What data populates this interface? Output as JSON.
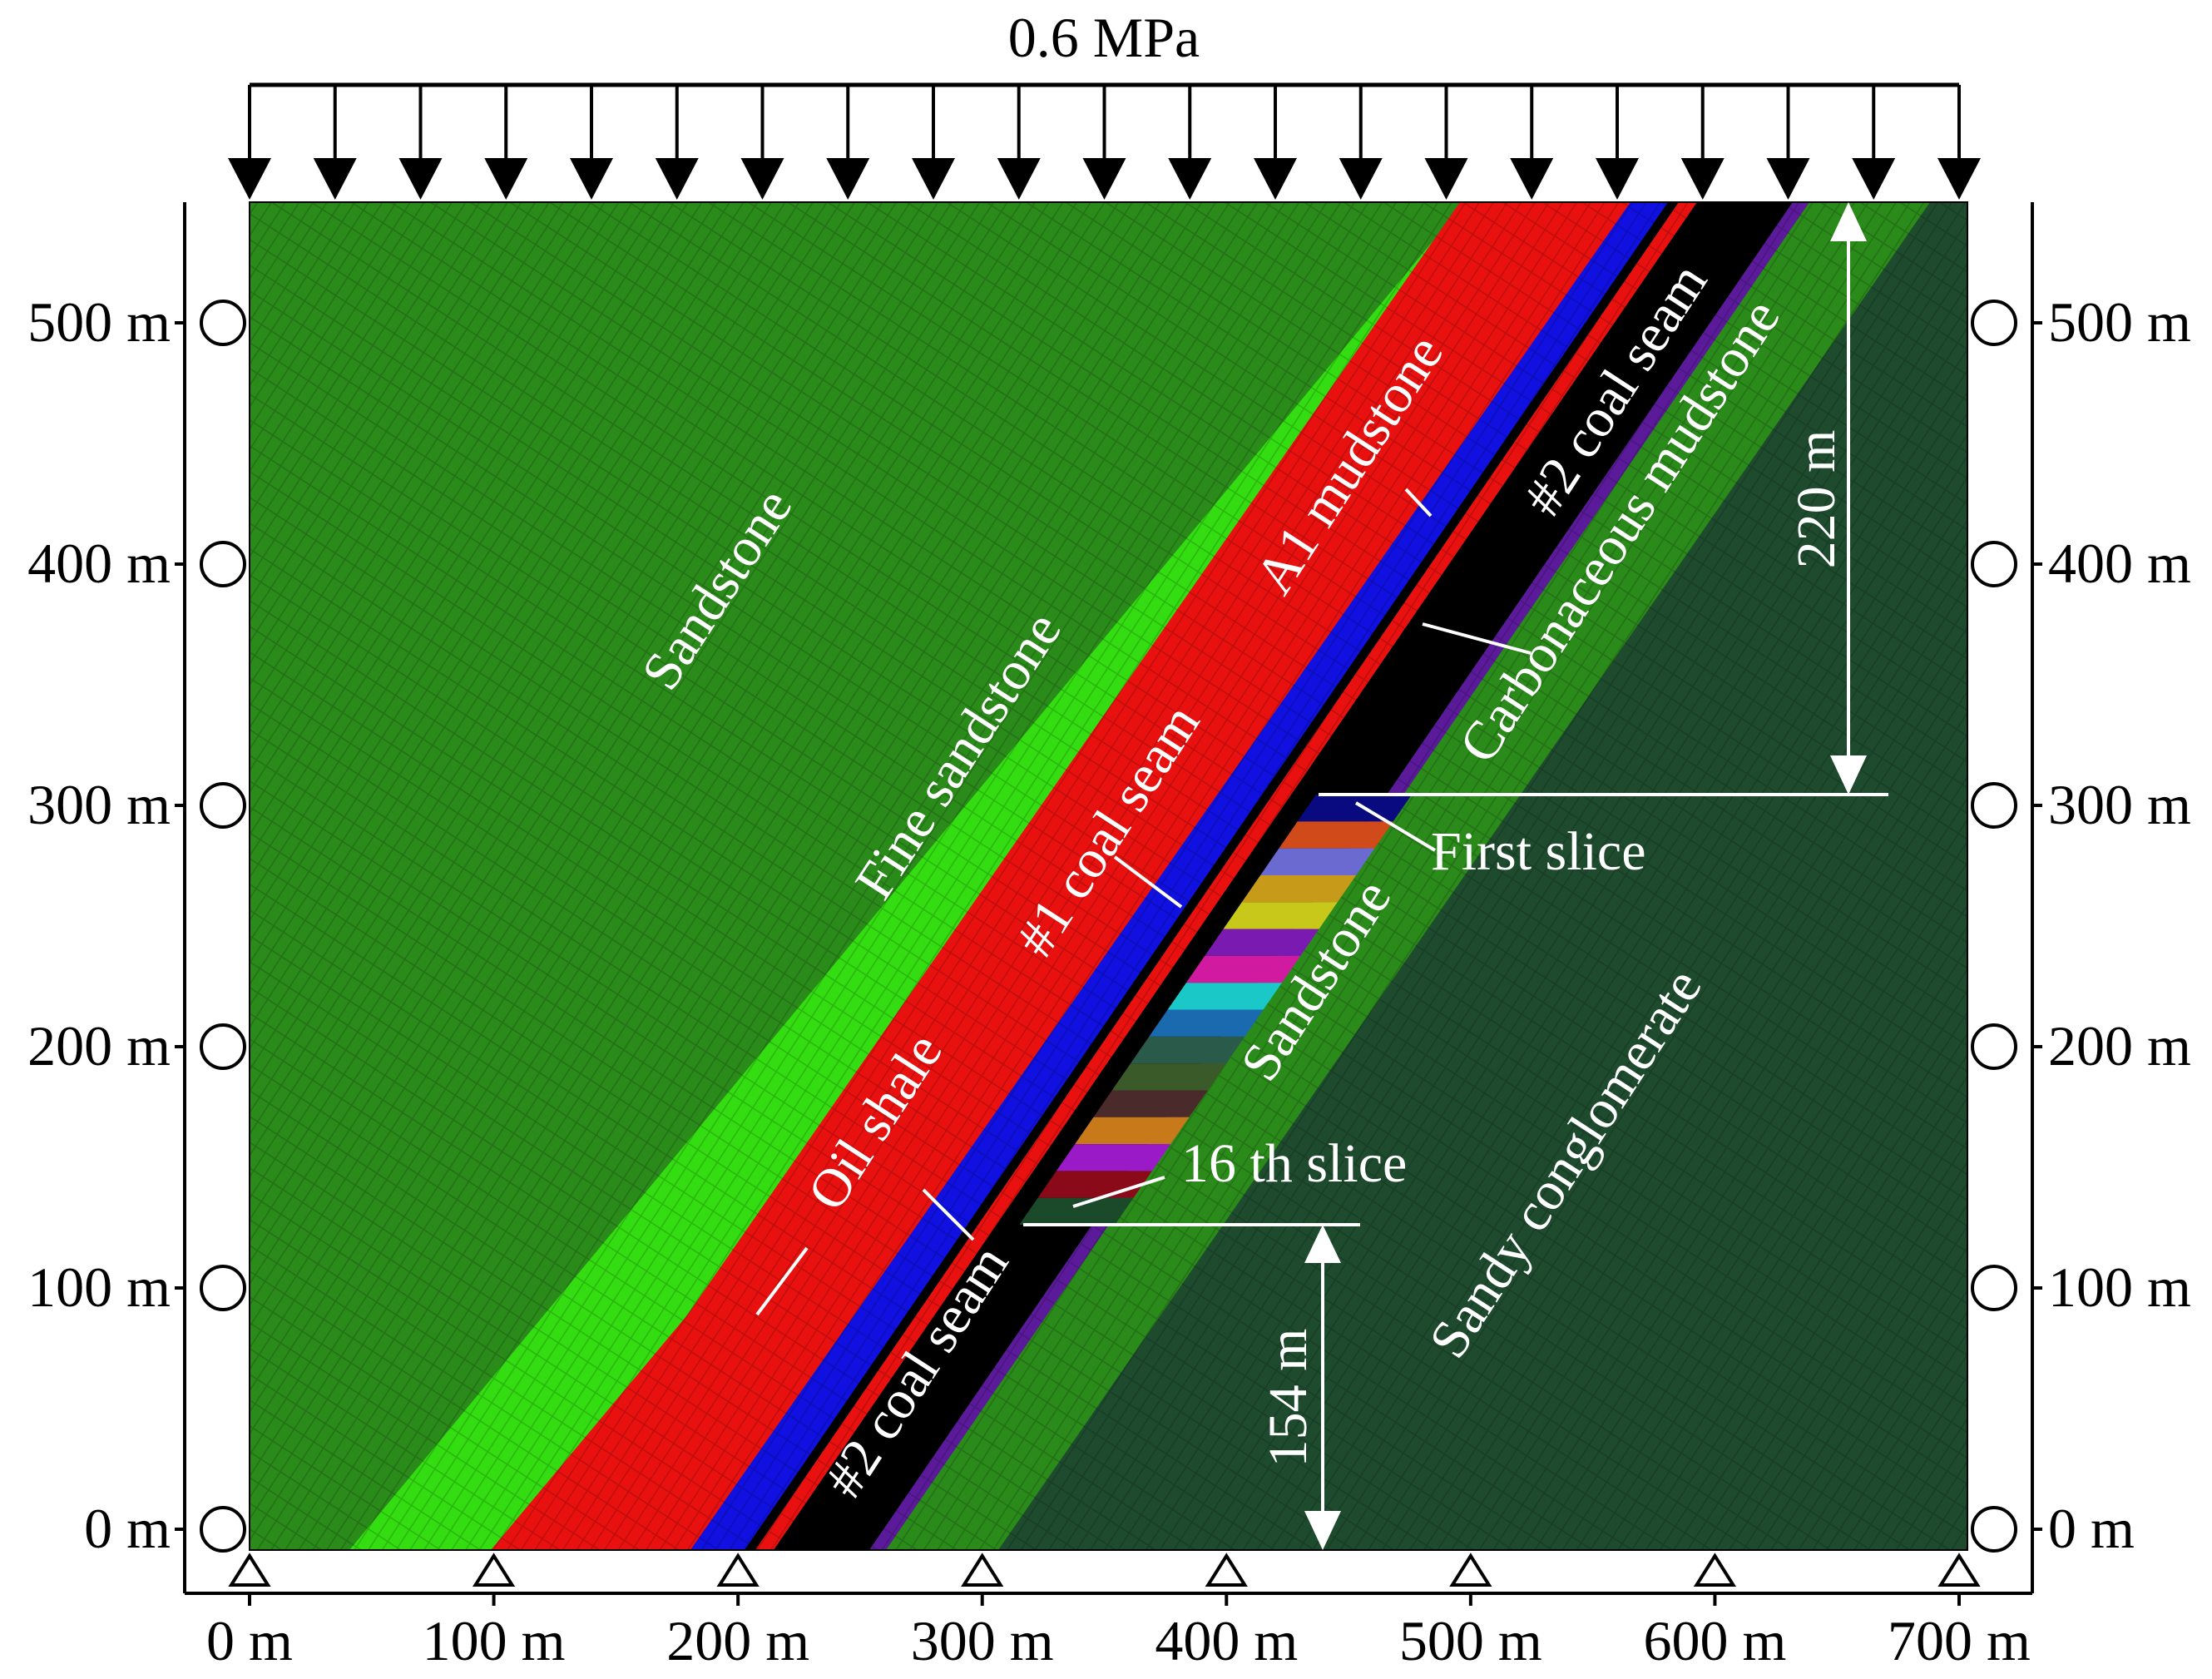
{
  "load": {
    "label": "0.6 MPa"
  },
  "axes": {
    "x_ticks": [
      "0 m",
      "100 m",
      "200 m",
      "300 m",
      "400 m",
      "500 m",
      "600 m",
      "700 m"
    ],
    "y_ticks_left": [
      "0 m",
      "100 m",
      "200 m",
      "300 m",
      "400 m",
      "500 m"
    ],
    "y_ticks_right": [
      "0 m",
      "100 m",
      "200 m",
      "300 m",
      "400 m",
      "500 m"
    ]
  },
  "layers": [
    {
      "name": "Sandstone",
      "color": "#2a8a1a"
    },
    {
      "name": "Fine sandstone",
      "color": "#33dd11"
    },
    {
      "name": "Oil shale",
      "color": "#e8110f"
    },
    {
      "name": "#1 coal seam",
      "color": "#1010e0"
    },
    {
      "name": "A1 mudstone",
      "color": "#e8110f"
    },
    {
      "name": "#2 coal seam",
      "color": "#000000"
    },
    {
      "name": "Carbonaceous mudstone",
      "color": "#5a1a9a"
    },
    {
      "name": "Sandstone",
      "color": "#2a8a1a"
    },
    {
      "name": "Sandy conglomerate",
      "color": "#1e4a2e"
    }
  ],
  "labels": {
    "sandstone_top": "Sandstone",
    "fine_sandstone": "Fine sandstone",
    "coal1": "#1 coal seam",
    "a1_mudstone": "A1 mudstone",
    "coal2_upper": "#2 coal seam",
    "carbonaceous": "Carbonaceous mudstone",
    "oil_shale": "Oil shale",
    "coal2_lower": "#2 coal seam",
    "sandstone_lower": "Sandstone",
    "sandy_conglomerate": "Sandy conglomerate"
  },
  "annotations": {
    "first_slice": "First slice",
    "sixteenth_slice": "16 th slice",
    "dim_top": "220 m",
    "dim_bottom": "154 m"
  },
  "slice_colors": [
    "#0a0a80",
    "#d04a1a",
    "#6a6ad0",
    "#c89a1a",
    "#c8c81a",
    "#7a1ab0",
    "#d01aa0",
    "#1ac8c8",
    "#1a6ab0",
    "#2a5a4a",
    "#3a5a2a",
    "#4a2a2a",
    "#c87a1a",
    "#9a1ac8",
    "#8a0a1a",
    "#1a4a2a"
  ]
}
